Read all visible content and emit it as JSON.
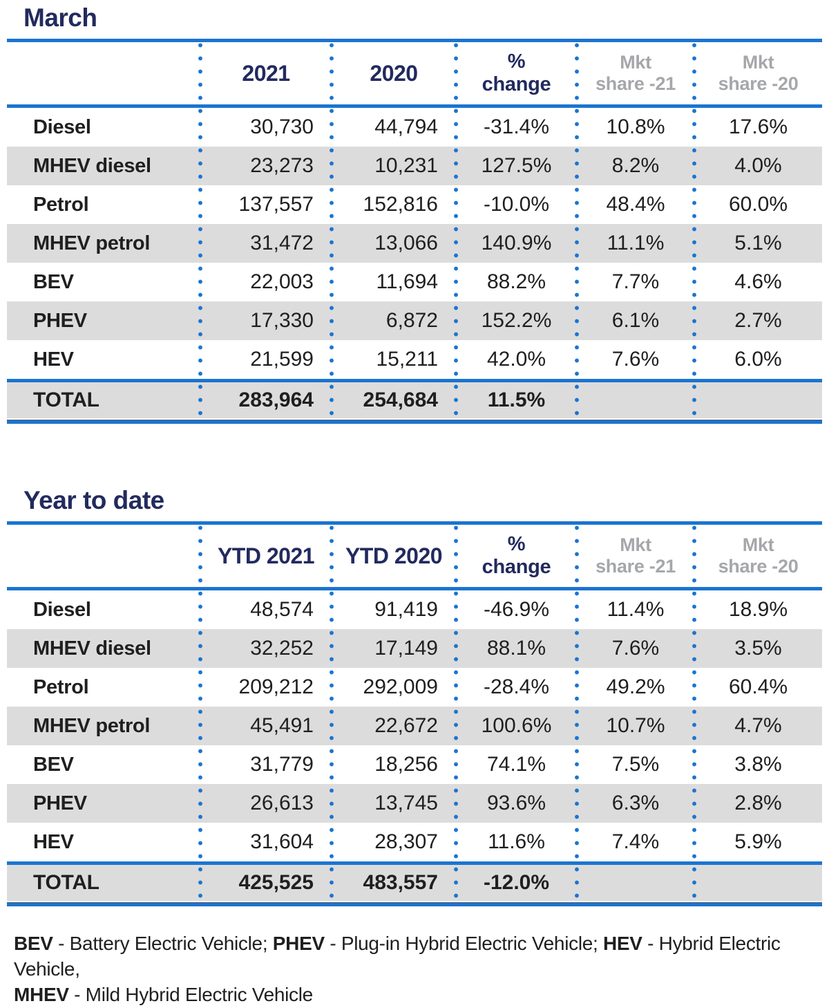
{
  "colors": {
    "accent_blue": "#1b74d0",
    "navy": "#222a5e",
    "gray_text": "#a5a7aa",
    "row_gray": "#dcdcdc",
    "text": "#1f1f1f"
  },
  "march_table": {
    "title": "March",
    "header": {
      "year_a": "2021",
      "year_b": "2020",
      "change_line1": "%",
      "change_line2": "change",
      "share21_line1": "Mkt",
      "share21_line2": "share -21",
      "share20_line1": "Mkt",
      "share20_line2": "share -20"
    },
    "rows": [
      {
        "label": "Diesel",
        "y2021": "30,730",
        "y2020": "44,794",
        "change": "-31.4%",
        "share21": "10.8%",
        "share20": "17.6%"
      },
      {
        "label": "MHEV diesel",
        "y2021": "23,273",
        "y2020": "10,231",
        "change": "127.5%",
        "share21": "8.2%",
        "share20": "4.0%"
      },
      {
        "label": "Petrol",
        "y2021": "137,557",
        "y2020": "152,816",
        "change": "-10.0%",
        "share21": "48.4%",
        "share20": "60.0%"
      },
      {
        "label": "MHEV petrol",
        "y2021": "31,472",
        "y2020": "13,066",
        "change": "140.9%",
        "share21": "11.1%",
        "share20": "5.1%"
      },
      {
        "label": "BEV",
        "y2021": "22,003",
        "y2020": "11,694",
        "change": "88.2%",
        "share21": "7.7%",
        "share20": "4.6%"
      },
      {
        "label": "PHEV",
        "y2021": "17,330",
        "y2020": "6,872",
        "change": "152.2%",
        "share21": "6.1%",
        "share20": "2.7%"
      },
      {
        "label": "HEV",
        "y2021": "21,599",
        "y2020": "15,211",
        "change": "42.0%",
        "share21": "7.6%",
        "share20": "6.0%"
      }
    ],
    "total": {
      "label": "TOTAL",
      "y2021": "283,964",
      "y2020": "254,684",
      "change": "11.5%",
      "share21": "",
      "share20": ""
    }
  },
  "ytd_table": {
    "title": "Year to date",
    "header": {
      "year_a": "YTD 2021",
      "year_b": "YTD 2020",
      "change_line1": "%",
      "change_line2": "change",
      "share21_line1": "Mkt",
      "share21_line2": "share -21",
      "share20_line1": "Mkt",
      "share20_line2": "share -20"
    },
    "rows": [
      {
        "label": "Diesel",
        "y2021": "48,574",
        "y2020": "91,419",
        "change": "-46.9%",
        "share21": "11.4%",
        "share20": "18.9%"
      },
      {
        "label": "MHEV diesel",
        "y2021": "32,252",
        "y2020": "17,149",
        "change": "88.1%",
        "share21": "7.6%",
        "share20": "3.5%"
      },
      {
        "label": "Petrol",
        "y2021": "209,212",
        "y2020": "292,009",
        "change": "-28.4%",
        "share21": "49.2%",
        "share20": "60.4%"
      },
      {
        "label": "MHEV petrol",
        "y2021": "45,491",
        "y2020": "22,672",
        "change": "100.6%",
        "share21": "10.7%",
        "share20": "4.7%"
      },
      {
        "label": "BEV",
        "y2021": "31,779",
        "y2020": "18,256",
        "change": "74.1%",
        "share21": "7.5%",
        "share20": "3.8%"
      },
      {
        "label": "PHEV",
        "y2021": "26,613",
        "y2020": "13,745",
        "change": "93.6%",
        "share21": "6.3%",
        "share20": "2.8%"
      },
      {
        "label": "HEV",
        "y2021": "31,604",
        "y2020": "28,307",
        "change": "11.6%",
        "share21": "7.4%",
        "share20": "5.9%"
      }
    ],
    "total": {
      "label": "TOTAL",
      "y2021": "425,525",
      "y2020": "483,557",
      "change": "-12.0%",
      "share21": "",
      "share20": ""
    }
  },
  "footnote": {
    "line1": {
      "term1": "BEV",
      "text1": " - Battery Electric Vehicle; ",
      "term2": "PHEV",
      "text2": " - Plug-in Hybrid Electric Vehicle; ",
      "term3": "HEV",
      "text3": " - Hybrid Electric Vehicle,"
    },
    "line2": {
      "term1": "MHEV",
      "text1": " - Mild Hybrid Electric Vehicle"
    }
  }
}
